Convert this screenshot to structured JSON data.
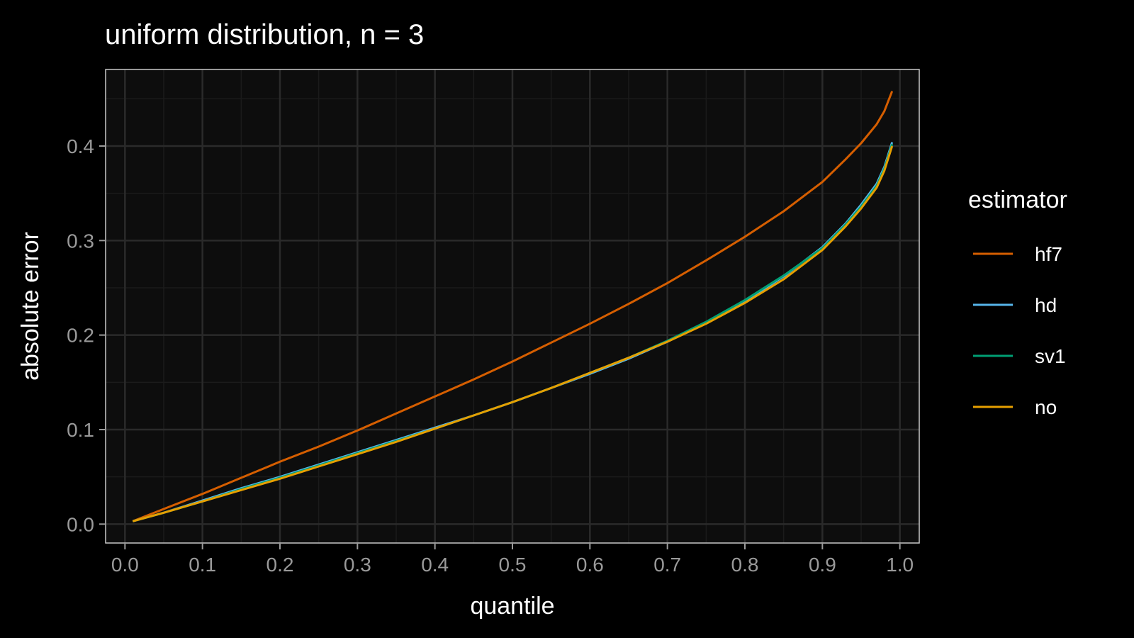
{
  "chart_data": {
    "type": "line",
    "title": "uniform distribution, n = 3",
    "xlabel": "quantile",
    "ylabel": "absolute error",
    "xlim": [
      -0.025,
      1.025
    ],
    "ylim": [
      -0.02,
      0.481
    ],
    "x_ticks": [
      "0.0",
      "0.1",
      "0.2",
      "0.3",
      "0.4",
      "0.5",
      "0.6",
      "0.7",
      "0.8",
      "0.9",
      "1.0"
    ],
    "y_ticks": [
      "0.0",
      "0.1",
      "0.2",
      "0.3",
      "0.4"
    ],
    "grid": true,
    "legend_title": "estimator",
    "legend_position": "right",
    "x": [
      0.01,
      0.05,
      0.1,
      0.15,
      0.2,
      0.25,
      0.3,
      0.35,
      0.4,
      0.45,
      0.5,
      0.55,
      0.6,
      0.65,
      0.7,
      0.75,
      0.8,
      0.85,
      0.9,
      0.93,
      0.95,
      0.97,
      0.98,
      0.99
    ],
    "series": [
      {
        "name": "hf7",
        "color": "#D55E00",
        "values": [
          0.003,
          0.016,
          0.032,
          0.049,
          0.066,
          0.082,
          0.099,
          0.117,
          0.135,
          0.153,
          0.172,
          0.192,
          0.212,
          0.233,
          0.255,
          0.279,
          0.304,
          0.331,
          0.362,
          0.386,
          0.403,
          0.423,
          0.437,
          0.458
        ]
      },
      {
        "name": "hd",
        "color": "#56B4E9",
        "values": [
          0.003,
          0.012,
          0.025,
          0.038,
          0.05,
          0.063,
          0.076,
          0.089,
          0.102,
          0.115,
          0.129,
          0.144,
          0.159,
          0.175,
          0.193,
          0.213,
          0.236,
          0.262,
          0.293,
          0.318,
          0.338,
          0.36,
          0.378,
          0.404
        ]
      },
      {
        "name": "sv1",
        "color": "#009E73",
        "values": [
          0.003,
          0.012,
          0.024,
          0.037,
          0.049,
          0.062,
          0.075,
          0.088,
          0.101,
          0.115,
          0.129,
          0.144,
          0.16,
          0.176,
          0.194,
          0.214,
          0.237,
          0.263,
          0.292,
          0.317,
          0.336,
          0.358,
          0.376,
          0.402
        ]
      },
      {
        "name": "no",
        "color": "#E69F00",
        "values": [
          0.003,
          0.012,
          0.024,
          0.036,
          0.048,
          0.061,
          0.074,
          0.087,
          0.101,
          0.115,
          0.129,
          0.144,
          0.16,
          0.176,
          0.193,
          0.212,
          0.234,
          0.259,
          0.29,
          0.315,
          0.334,
          0.356,
          0.374,
          0.4
        ]
      }
    ]
  },
  "colors": {
    "background": "#000000",
    "panel": "#0d0d0d",
    "grid_major": "#2a2a2a",
    "grid_minor": "#1b1b1b",
    "panel_border": "#c8c8c8"
  }
}
